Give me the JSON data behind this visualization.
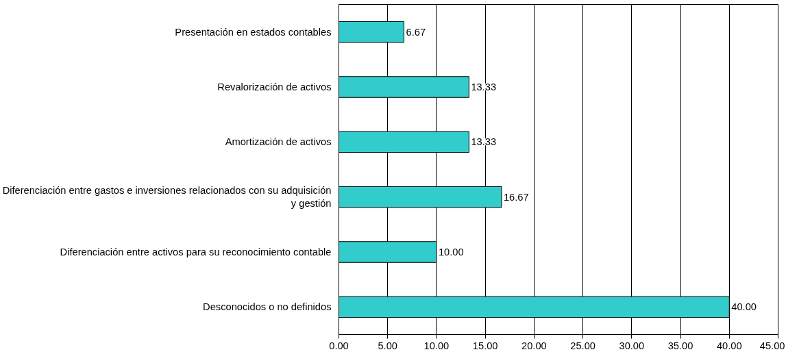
{
  "chart_data": {
    "type": "bar",
    "orientation": "horizontal",
    "categories": [
      "Presentación en estados contables",
      "Revalorización de activos",
      "Amortización de activos",
      "Diferenciación entre gastos e inversiones relacionados con su adquisición y gestión",
      "Diferenciación entre activos para su reconocimiento contable",
      "Desconocidos o no definidos"
    ],
    "values": [
      6.67,
      13.33,
      13.33,
      16.67,
      10,
      40
    ],
    "value_labels": [
      "6.67",
      "13.33",
      "13.33",
      "16.67",
      "10.00",
      "40.00"
    ],
    "color": "#33cccc",
    "xlim": [
      0,
      45
    ],
    "xticks": [
      {
        "value": 0,
        "label": "0.00"
      },
      {
        "value": 5,
        "label": "5.00"
      },
      {
        "value": 10,
        "label": "10.00"
      },
      {
        "value": 15,
        "label": "15.00"
      },
      {
        "value": 20,
        "label": "20.00"
      },
      {
        "value": 25,
        "label": "25.00"
      },
      {
        "value": 30,
        "label": "30.00"
      },
      {
        "value": 35,
        "label": "35.00"
      },
      {
        "value": 40,
        "label": "40.00"
      },
      {
        "value": 45,
        "label": "45.00"
      }
    ],
    "grid": "x"
  }
}
